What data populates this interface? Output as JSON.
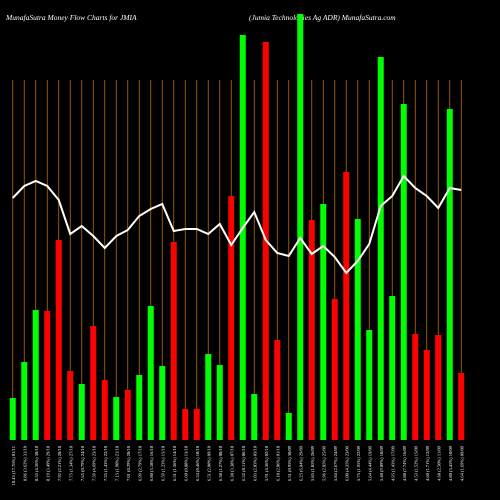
{
  "chart_data": {
    "type": "bar",
    "title": "MunafaSutra  Money Flow  Charts for JMIA",
    "subtitle": "(Jumia  Technologies Ag ADR) MunafaSutra.com",
    "categories": [
      "10.43 (17.76%) 01/11",
      "8.86 (3.62%) 31/10",
      "8.55 (4.36%) 30/10",
      "8.19 (3.49%) 29/10",
      "7.92 (2.21%) 28/10",
      "7.75 (1.34%) 27/10",
      "7.65 (0.79%) 24/10",
      "7.59 (4.69%) 23/10",
      "7.25 (1.43%) 22/10",
      "7.15 (1.90%) 21/10",
      "7.01 (0.29%) 20/10",
      "6.99 (2.79%) 17/10",
      "6.80 (3.18%) 16/10",
      "6.59 (1.23%) 15/10",
      "6.51 (1.36%) 14/10",
      "6.60 (0.88%) 13/10",
      "6.54 (0.46%) 10/10",
      "6.51 (2.00%) 09/10",
      "6.38 (1.27%) 08/10",
      "6.30 (3.38%) 07/10",
      "6.52 (8.11%) 06/10",
      "6.03 (2.03%) 03/10",
      "5.91 (4.36%) 02/10",
      "6.18 (2.06%) 01/10",
      "6.31 (0.95%) 30/09",
      "6.25 (6.84%) 29/09",
      "5.85 (1.85%) 26/09",
      "5.96 (2.05%) 25/09",
      "5.84 (2.67%) 24/09",
      "6.00 (4.35%) 23/09",
      "5.75 (1.95%) 22/09",
      "5.64 (4.44%) 19/09",
      "5.40 (9.09%) 18/09",
      "4.95 (1.43%) 17/09",
      "4.88 (7.74%) 16/09",
      "4.53 (1.52%) 15/09",
      "4.60 (1.71%) 12/09",
      "4.68 (2.50%) 11/09",
      "4.80 (3.45%) 10/09",
      "4.64 (1.69%) 09/09"
    ],
    "series": [
      {
        "values": [
          42,
          78,
          130,
          129,
          200,
          69,
          56,
          114,
          60,
          43,
          50,
          65,
          134,
          74,
          198,
          31,
          31,
          86,
          75,
          244,
          405,
          46,
          398,
          100,
          27,
          426,
          220,
          236,
          141,
          268,
          221,
          110,
          383,
          144,
          336,
          106,
          90,
          105,
          331,
          67
        ],
        "colors": [
          "#00ff00",
          "#00ff00",
          "#00ff00",
          "#ff0000",
          "#ff0000",
          "#ff0000",
          "#00ff00",
          "#ff0000",
          "#ff0000",
          "#00ff00",
          "#ff0000",
          "#00ff00",
          "#00ff00",
          "#00ff00",
          "#ff0000",
          "#ff0000",
          "#ff0000",
          "#00ff00",
          "#00ff00",
          "#ff0000",
          "#00ff00",
          "#00ff00",
          "#ff0000",
          "#ff0000",
          "#00ff00",
          "#00ff00",
          "#ff0000",
          "#00ff00",
          "#ff0000",
          "#ff0000",
          "#00ff00",
          "#00ff00",
          "#00ff00",
          "#00ff00",
          "#00ff00",
          "#ff0000",
          "#ff0000",
          "#ff0000",
          "#00ff00",
          "#ff0000"
        ]
      },
      {
        "type": "line",
        "color": "#ffffff",
        "values": [
          242,
          254,
          259,
          254,
          240,
          206,
          214,
          204,
          192,
          204,
          210,
          224,
          231,
          236,
          209,
          211,
          211,
          206,
          216,
          195,
          212,
          228,
          200,
          187,
          184,
          202,
          186,
          194,
          183,
          167,
          179,
          196,
          234,
          244,
          264,
          252,
          244,
          232,
          252,
          250
        ]
      }
    ],
    "ylim": [
      0,
      440
    ],
    "grid": true,
    "grid_color": "#b8690c",
    "background": "#000000"
  }
}
